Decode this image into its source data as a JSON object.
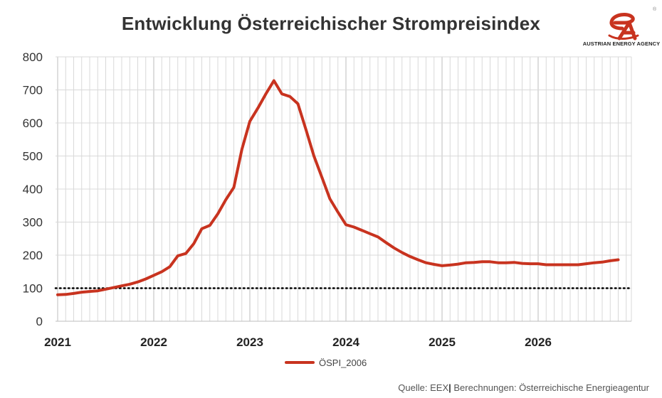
{
  "chart_data": {
    "type": "line",
    "title": "Entwicklung Österreichischer Strompreisindex",
    "xlabel": "",
    "ylabel": "",
    "ylim": [
      0,
      800
    ],
    "yticks": [
      "0",
      "100",
      "200",
      "300",
      "400",
      "500",
      "600",
      "700",
      "800"
    ],
    "xticks": [
      "2021",
      "2022",
      "2023",
      "2024",
      "2025",
      "2026"
    ],
    "grid": true,
    "legend_position": "bottom",
    "reference_line": {
      "y": 100,
      "style": "dotted",
      "color": "#000000"
    },
    "series": [
      {
        "name": "ÖSPI_2006",
        "color": "#c8331f",
        "start": "2021-01",
        "values": [
          80,
          81,
          84,
          88,
          90,
          92,
          97,
          102,
          107,
          112,
          119,
          128,
          139,
          150,
          165,
          198,
          205,
          235,
          280,
          290,
          325,
          368,
          405,
          520,
          605,
          645,
          688,
          728,
          688,
          680,
          658,
          580,
          500,
          435,
          370,
          330,
          292,
          285,
          275,
          265,
          255,
          238,
          222,
          208,
          196,
          186,
          177,
          172,
          168,
          170,
          173,
          177,
          178,
          180,
          180,
          177,
          177,
          178,
          175,
          174,
          174,
          171,
          171,
          171,
          171,
          171,
          174,
          177,
          179,
          183,
          186
        ]
      }
    ]
  },
  "logo": {
    "name": "austrian-energy-agency-logo",
    "text": "AUSTRIAN ENERGY AGENCY",
    "registered": "®",
    "color": "#c8331f"
  },
  "source": {
    "prefix": "Quelle: EEX",
    "separator": "|",
    "suffix": " Berechnungen: Österreichische Energieagentur"
  }
}
